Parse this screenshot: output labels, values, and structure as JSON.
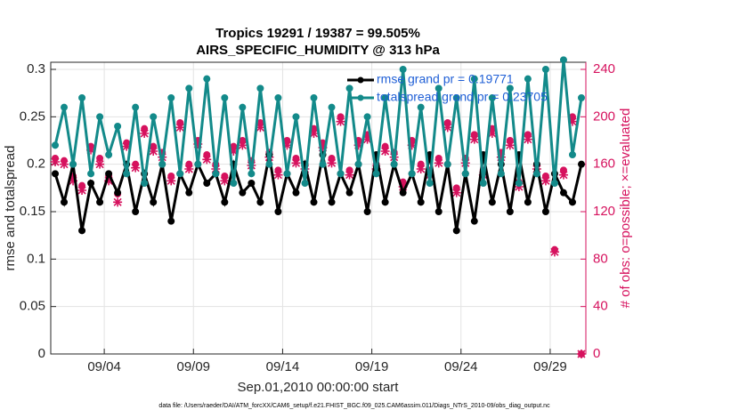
{
  "chart_data": {
    "type": "line",
    "title": "Tropics 19291 / 19387 = 99.505%",
    "subtitle": "AIRS_SPECIFIC_HUMIDITY @ 313 hPa",
    "x_label": "Sep.01,2010 00:00:00 start",
    "y_label": "rmse and totalspread",
    "y2_label": "# of obs: o=possible; ×=evaluated",
    "footnote": "data file: /Users/raeder/DAI/ATM_forcXX/CAM6_setup/f.e21.FHIST_BGC.f09_025.CAM6assim.011/Diags_NTrS_2010-09/obs_diag_output.nc",
    "legend": "northeast",
    "grid": true,
    "xlim": [
      0,
      30
    ],
    "xticks": [
      {
        "value": 3,
        "label": "09/04"
      },
      {
        "value": 8,
        "label": "09/09"
      },
      {
        "value": 13,
        "label": "09/14"
      },
      {
        "value": 18,
        "label": "09/19"
      },
      {
        "value": 23,
        "label": "09/24"
      },
      {
        "value": 28,
        "label": "09/29"
      }
    ],
    "ylim": [
      0,
      0.3075
    ],
    "yticks": [
      0,
      0.05,
      0.1,
      0.15,
      0.2,
      0.25,
      0.3
    ],
    "y2lim": [
      0,
      246
    ],
    "y2ticks": [
      0,
      40,
      80,
      120,
      160,
      200,
      240
    ],
    "x": [
      0.25,
      0.75,
      1.25,
      1.75,
      2.25,
      2.75,
      3.25,
      3.75,
      4.25,
      4.75,
      5.25,
      5.75,
      6.25,
      6.75,
      7.25,
      7.75,
      8.25,
      8.75,
      9.25,
      9.75,
      10.25,
      10.75,
      11.25,
      11.75,
      12.25,
      12.75,
      13.25,
      13.75,
      14.25,
      14.75,
      15.25,
      15.75,
      16.25,
      16.75,
      17.25,
      17.75,
      18.25,
      18.75,
      19.25,
      19.75,
      20.25,
      20.75,
      21.25,
      21.75,
      22.25,
      22.75,
      23.25,
      23.75,
      24.25,
      24.75,
      25.25,
      25.75,
      26.25,
      26.75,
      27.25,
      27.75,
      28.25,
      28.75,
      29.25,
      29.75
    ],
    "series": [
      {
        "name": "rmse grand pr = 0.19771",
        "color": "#000000",
        "marker": "circle",
        "values": [
          0.19,
          0.16,
          0.2,
          0.13,
          0.18,
          0.16,
          0.19,
          0.17,
          0.2,
          0.15,
          0.19,
          0.16,
          0.2,
          0.14,
          0.19,
          0.17,
          0.2,
          0.18,
          0.19,
          0.16,
          0.2,
          0.17,
          0.18,
          0.16,
          0.21,
          0.15,
          0.19,
          0.17,
          0.2,
          0.16,
          0.21,
          0.16,
          0.19,
          0.17,
          0.2,
          0.15,
          0.21,
          0.16,
          0.2,
          0.17,
          0.19,
          0.16,
          0.21,
          0.15,
          0.2,
          0.13,
          0.19,
          0.14,
          0.21,
          0.16,
          0.2,
          0.15,
          0.21,
          0.16,
          0.2,
          0.15,
          0.19,
          0.17,
          0.16,
          0.2
        ]
      },
      {
        "name": "totalspread grand pr = 0.23705",
        "color": "#138a8a",
        "marker": "circle",
        "values": [
          0.22,
          0.26,
          0.2,
          0.27,
          0.19,
          0.25,
          0.21,
          0.24,
          0.19,
          0.26,
          0.18,
          0.25,
          0.2,
          0.27,
          0.19,
          0.28,
          0.2,
          0.29,
          0.19,
          0.27,
          0.18,
          0.26,
          0.19,
          0.28,
          0.2,
          0.27,
          0.19,
          0.25,
          0.18,
          0.27,
          0.2,
          0.26,
          0.19,
          0.28,
          0.2,
          0.25,
          0.19,
          0.27,
          0.2,
          0.3,
          0.19,
          0.26,
          0.18,
          0.28,
          0.2,
          0.27,
          0.19,
          0.29,
          0.18,
          0.27,
          0.19,
          0.28,
          0.18,
          0.29,
          0.19,
          0.3,
          0.18,
          0.31,
          0.21,
          0.27
        ]
      },
      {
        "color": "#d6125e",
        "marker": "o",
        "axis": "y2",
        "values": [
          165,
          163,
          150,
          142,
          175,
          165,
          150,
          135,
          178,
          160,
          190,
          175,
          170,
          150,
          195,
          160,
          180,
          168,
          160,
          150,
          175,
          180,
          163,
          195,
          170,
          155,
          180,
          165,
          160,
          190,
          178,
          165,
          200,
          155,
          180,
          185,
          160,
          175,
          170,
          145,
          180,
          160,
          155,
          165,
          195,
          140,
          165,
          185,
          155,
          190,
          170,
          180,
          145,
          185,
          160,
          150,
          88,
          155,
          200,
          0
        ]
      },
      {
        "color": "#d6125e",
        "marker": "x",
        "axis": "y2",
        "values": [
          162,
          160,
          146,
          138,
          172,
          160,
          146,
          128,
          175,
          157,
          186,
          171,
          166,
          146,
          191,
          156,
          177,
          164,
          156,
          146,
          171,
          176,
          159,
          191,
          166,
          151,
          176,
          161,
          156,
          186,
          174,
          161,
          196,
          151,
          176,
          181,
          156,
          171,
          166,
          141,
          176,
          156,
          151,
          161,
          191,
          136,
          161,
          181,
          151,
          186,
          166,
          176,
          141,
          181,
          156,
          146,
          86,
          151,
          196,
          0
        ]
      }
    ]
  }
}
